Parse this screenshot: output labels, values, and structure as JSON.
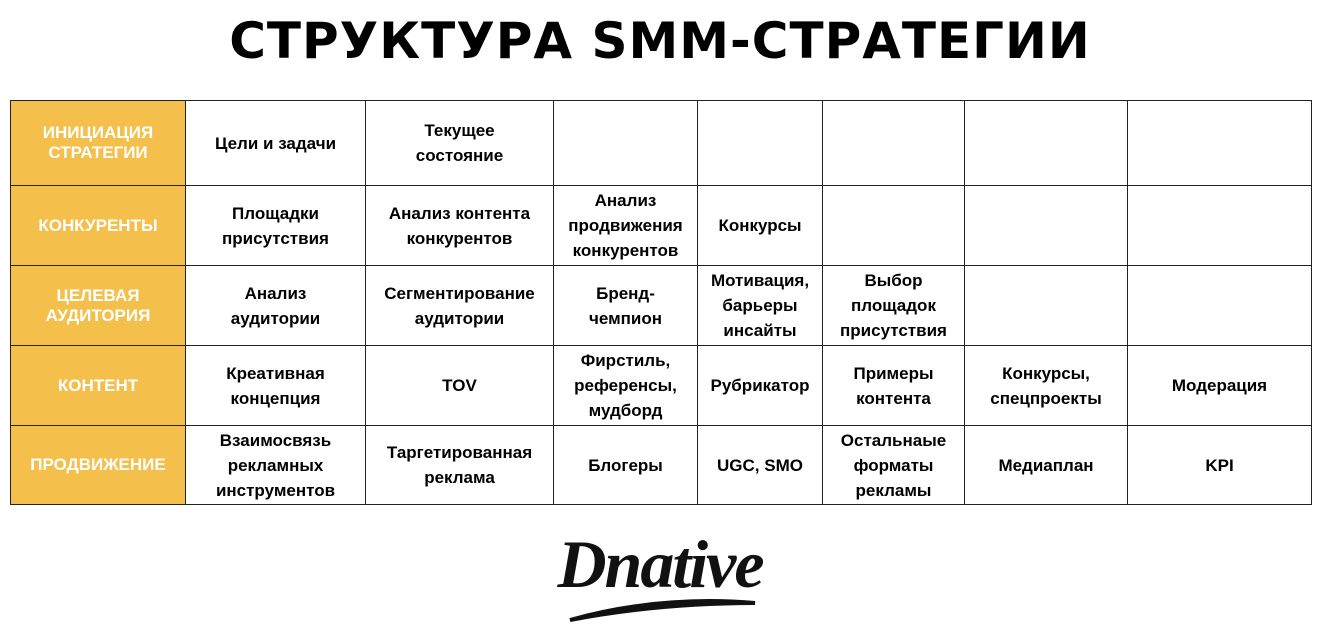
{
  "title": "СТРУКТУРА SMM-СТРАТЕГИИ",
  "accent_color": "#F5BF4C",
  "rows": [
    {
      "header": "ИНИЦИАЦИЯ\nСТРАТЕГИИ",
      "cells": [
        "Цели и задачи",
        "Текущее\nсостояние",
        "",
        "",
        "",
        "",
        ""
      ]
    },
    {
      "header": "КОНКУРЕНТЫ",
      "cells": [
        "Площадки\nприсутствия",
        "Анализ контента\nконкурентов",
        "Анализ\nпродвижения\nконкурентов",
        "Конкурсы",
        "",
        "",
        ""
      ]
    },
    {
      "header": "ЦЕЛЕВАЯ\nАУДИТОРИЯ",
      "cells": [
        "Анализ\nаудитории",
        "Сегментирование\nаудитории",
        "Бренд-\nчемпион",
        "Мотивация,\nбарьеры\nинсайты",
        "Выбор\nплощадок\nприсутствия",
        "",
        ""
      ]
    },
    {
      "header": "КОНТЕНТ",
      "cells": [
        "Креативная\nконцепция",
        "TOV",
        "Фирстиль,\nреференсы,\nмудборд",
        "Рубрикатор",
        "Примеры\nконтента",
        "Конкурсы,\nспецпроекты",
        "Модерация"
      ]
    },
    {
      "header": "ПРОДВИЖЕНИЕ",
      "cells": [
        "Взаимосвязь\nрекламных\nинструментов",
        "Таргетированная\nреклама",
        "Блогеры",
        "UGC, SMO",
        "Остальнаые\nформаты\nрекламы",
        "Медиаплан",
        "KPI"
      ]
    }
  ],
  "logo": "Dnative"
}
